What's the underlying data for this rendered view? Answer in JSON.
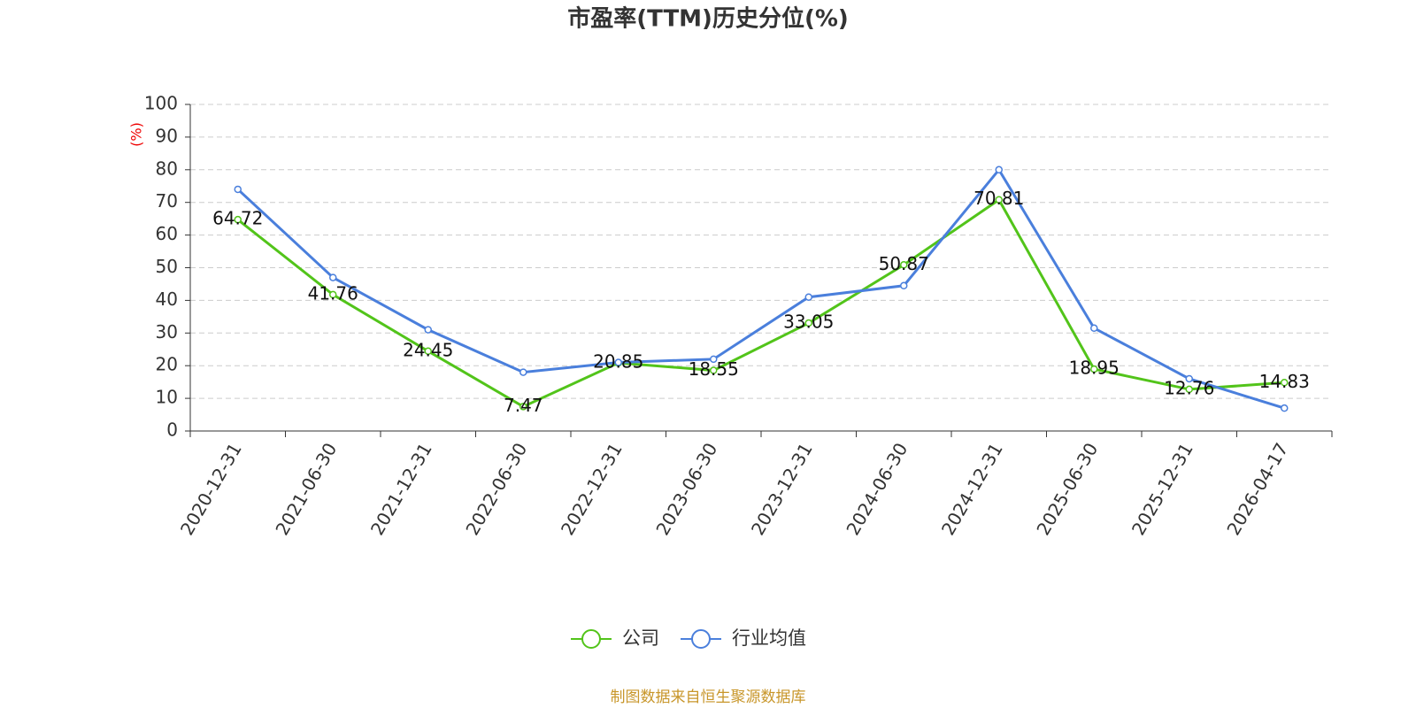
{
  "chart_data": {
    "type": "line",
    "title": "市盈率(TTM)历史分位(%)",
    "y_unit": "(%)",
    "categories": [
      "2020-12-31",
      "2021-06-30",
      "2021-12-31",
      "2022-06-30",
      "2022-12-31",
      "2023-06-30",
      "2023-12-31",
      "2024-06-30",
      "2024-12-31",
      "2025-06-30",
      "2025-12-31",
      "2026-04-17"
    ],
    "series": [
      {
        "name": "公司",
        "color": "#52c41a",
        "values": [
          64.72,
          41.76,
          24.45,
          7.47,
          20.85,
          18.55,
          33.05,
          50.87,
          70.81,
          18.95,
          12.76,
          14.83
        ],
        "data_labels": true
      },
      {
        "name": "行业均值",
        "color": "#4a7fdc",
        "values": [
          74,
          47,
          31,
          18,
          21,
          22,
          41,
          44.5,
          80,
          31.5,
          16,
          7
        ]
      }
    ],
    "ylim": [
      0,
      100
    ],
    "yticks": [
      0,
      10,
      20,
      30,
      40,
      50,
      60,
      70,
      80,
      90,
      100
    ],
    "grid": true,
    "legend": "bottom",
    "source": "制图数据来自恒生聚源数据库"
  }
}
